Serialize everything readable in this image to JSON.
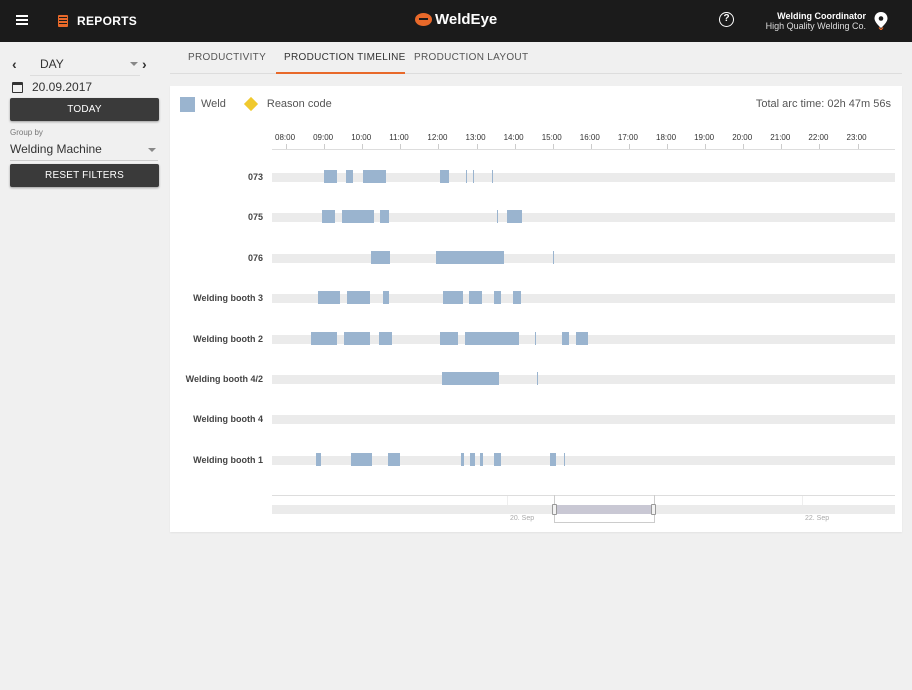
{
  "header": {
    "section_label": "REPORTS",
    "logo_text": "WeldEye",
    "help_glyph": "?",
    "user_role": "Welding Coordinator",
    "user_company": "High Quality Welding Co."
  },
  "sidebar": {
    "period_value": "DAY",
    "prev_glyph": "‹",
    "next_glyph": "›",
    "date_value": "20.09.2017",
    "today_label": "TODAY",
    "groupby_label": "Group by",
    "groupby_value": "Welding Machine",
    "reset_label": "RESET FILTERS"
  },
  "tabs": [
    {
      "label": "PRODUCTIVITY"
    },
    {
      "label": "PRODUCTION TIMELINE"
    },
    {
      "label": "PRODUCTION LAYOUT"
    }
  ],
  "active_tab": "PRODUCTION TIMELINE",
  "legend": {
    "weld_label": "Weld",
    "reason_label": "Reason code",
    "weld_color": "#9ab4cf",
    "reason_color": "#f0c92e"
  },
  "total_arc_time": "Total arc time: 02h 47m 56s",
  "timeline": {
    "hours": [
      "08:00",
      "09:00",
      "10:00",
      "11:00",
      "12:00",
      "13:00",
      "14:00",
      "15:00",
      "16:00",
      "17:00",
      "18:00",
      "19:00",
      "20:00",
      "21:00",
      "22:00",
      "23:00"
    ],
    "rows": [
      {
        "label": "073",
        "welds": [
          [
            "09:00",
            "09:20"
          ],
          [
            "09:35",
            "09:46"
          ],
          [
            "10:02",
            "10:37"
          ],
          [
            "12:03",
            "12:17"
          ]
        ],
        "marks": [
          "12:44",
          "12:55",
          "13:25"
        ]
      },
      {
        "label": "075",
        "welds": [
          [
            "08:57",
            "09:17"
          ],
          [
            "09:28",
            "10:18"
          ],
          [
            "10:28",
            "10:43"
          ],
          [
            "13:48",
            "14:11"
          ]
        ],
        "marks": [
          "13:33"
        ]
      },
      {
        "label": "076",
        "welds": [
          [
            "10:14",
            "10:44"
          ],
          [
            "11:56",
            "13:43"
          ]
        ],
        "marks": [
          "15:00"
        ]
      },
      {
        "label": "Welding booth 3",
        "welds": [
          [
            "08:50",
            "09:25"
          ],
          [
            "09:36",
            "10:12"
          ],
          [
            "10:32",
            "10:42"
          ],
          [
            "12:08",
            "12:38"
          ],
          [
            "12:48",
            "13:08"
          ],
          [
            "13:28",
            "13:38"
          ],
          [
            "13:58",
            "14:10"
          ]
        ],
        "marks": []
      },
      {
        "label": "Welding booth 2",
        "welds": [
          [
            "08:40",
            "09:20"
          ],
          [
            "09:32",
            "10:12"
          ],
          [
            "10:27",
            "10:47"
          ],
          [
            "12:02",
            "12:31"
          ],
          [
            "12:42",
            "14:07"
          ],
          [
            "15:15",
            "15:25"
          ],
          [
            "15:37",
            "15:55"
          ]
        ],
        "marks": [
          "14:32"
        ]
      },
      {
        "label": "Welding booth 4/2",
        "welds": [
          [
            "12:06",
            "13:36"
          ]
        ],
        "marks": [
          "14:36"
        ]
      },
      {
        "label": "Welding booth 4",
        "welds": [],
        "marks": []
      },
      {
        "label": "Welding booth 1",
        "welds": [
          [
            "08:48",
            "08:55"
          ],
          [
            "09:42",
            "10:15"
          ],
          [
            "10:40",
            "11:00"
          ],
          [
            "12:35",
            "12:41"
          ],
          [
            "12:49",
            "12:58"
          ],
          [
            "13:05",
            "13:11"
          ],
          [
            "13:28",
            "13:38"
          ],
          [
            "14:55",
            "15:05"
          ]
        ],
        "marks": [
          "15:18"
        ]
      }
    ]
  },
  "navigator": {
    "labels": [
      "20. Sep",
      "22. Sep"
    ]
  },
  "icons": {
    "menu": "menu-icon",
    "reports": "report-icon",
    "help": "help-icon",
    "location": "location-pin-icon",
    "calendar": "calendar-icon"
  }
}
